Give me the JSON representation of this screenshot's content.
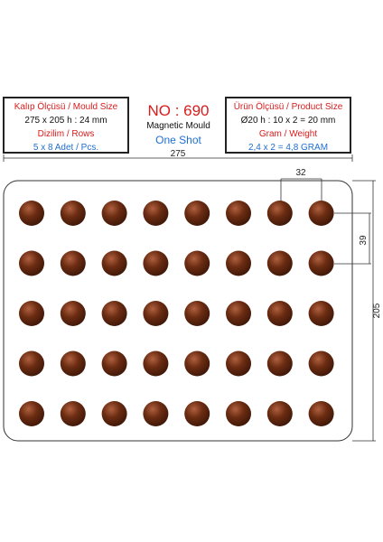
{
  "left_box": {
    "line1": "Kalıp Ölçüsü / Mould Size",
    "line2": "275 x 205 h : 24 mm",
    "line3": "Dizilim / Rows",
    "line4": "5 x 8 Adet / Pcs."
  },
  "center": {
    "model": "NO : 690",
    "type": "Magnetic Mould",
    "shot": "One Shot"
  },
  "right_box": {
    "line1": "Ürün Ölçüsü / Product Size",
    "line2": "Ø20 h : 10 x 2 = 20 mm",
    "line3": "Gram / Weight",
    "line4": "2,4 x 2 = 4,8 GRAM"
  },
  "dimensions": {
    "width": "275",
    "height": "205",
    "pitch_x": "32",
    "pitch_y": "39"
  },
  "mould": {
    "rows": 5,
    "cols": 8,
    "cavity_color": "#5a2510",
    "highlight_color": "#a8563a"
  }
}
